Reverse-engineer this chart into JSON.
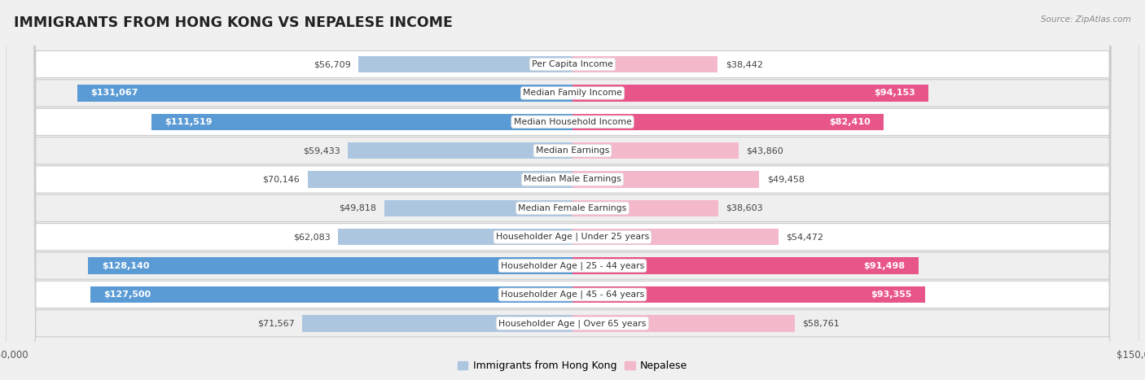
{
  "title": "IMMIGRANTS FROM HONG KONG VS NEPALESE INCOME",
  "source": "Source: ZipAtlas.com",
  "categories": [
    "Per Capita Income",
    "Median Family Income",
    "Median Household Income",
    "Median Earnings",
    "Median Male Earnings",
    "Median Female Earnings",
    "Householder Age | Under 25 years",
    "Householder Age | 25 - 44 years",
    "Householder Age | 45 - 64 years",
    "Householder Age | Over 65 years"
  ],
  "hk_values": [
    56709,
    131067,
    111519,
    59433,
    70146,
    49818,
    62083,
    128140,
    127500,
    71567
  ],
  "nepal_values": [
    38442,
    94153,
    82410,
    43860,
    49458,
    38603,
    54472,
    91498,
    93355,
    58761
  ],
  "hk_labels": [
    "$56,709",
    "$131,067",
    "$111,519",
    "$59,433",
    "$70,146",
    "$49,818",
    "$62,083",
    "$128,140",
    "$127,500",
    "$71,567"
  ],
  "nepal_labels": [
    "$38,442",
    "$94,153",
    "$82,410",
    "$43,860",
    "$49,458",
    "$38,603",
    "$54,472",
    "$91,498",
    "$93,355",
    "$58,761"
  ],
  "hk_color_light": "#adc6e0",
  "hk_color_strong": "#5b9bd5",
  "nepal_color_light": "#f4b8cb",
  "nepal_color_strong": "#e8558a",
  "hk_strong_threshold": 100000,
  "nepal_strong_threshold": 80000,
  "max_val": 150000,
  "row_colors": [
    "#ffffff",
    "#efefef"
  ],
  "legend_hk": "Immigrants from Hong Kong",
  "legend_nepal": "Nepalese"
}
